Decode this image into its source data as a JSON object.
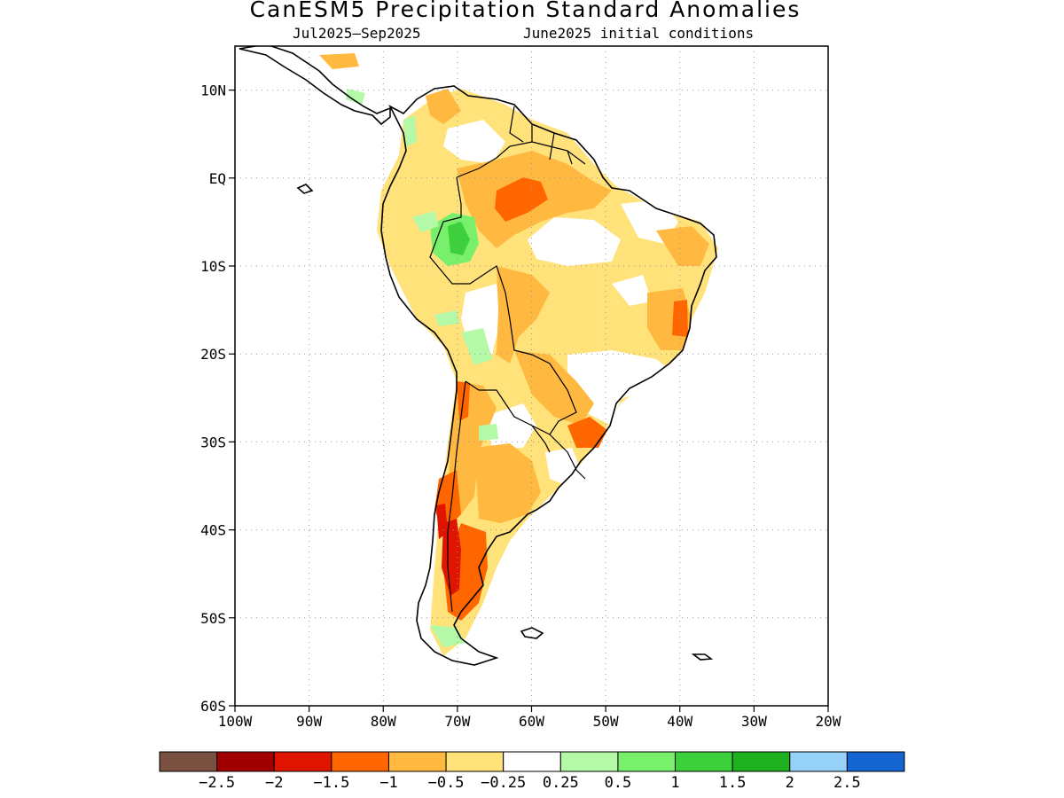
{
  "title": "CanESM5 Precipitation Standard Anomalies",
  "subtitle_left": "Jul2025–Sep2025",
  "subtitle_right": "June2025 initial conditions",
  "map": {
    "lon_range": [
      -100,
      -20
    ],
    "lat_range": [
      -60,
      15
    ],
    "lat_ticks": [
      {
        "value": 10,
        "label": "10N"
      },
      {
        "value": 0,
        "label": "EQ"
      },
      {
        "value": -10,
        "label": "10S"
      },
      {
        "value": -20,
        "label": "20S"
      },
      {
        "value": -30,
        "label": "30S"
      },
      {
        "value": -40,
        "label": "40S"
      },
      {
        "value": -50,
        "label": "50S"
      },
      {
        "value": -60,
        "label": "60S"
      }
    ],
    "lon_ticks": [
      {
        "value": -100,
        "label": "100W"
      },
      {
        "value": -90,
        "label": "90W"
      },
      {
        "value": -80,
        "label": "80W"
      },
      {
        "value": -70,
        "label": "70W"
      },
      {
        "value": -60,
        "label": "60W"
      },
      {
        "value": -50,
        "label": "50W"
      },
      {
        "value": -40,
        "label": "40W"
      },
      {
        "value": -30,
        "label": "30W"
      },
      {
        "value": -20,
        "label": "20W"
      }
    ],
    "grid": "dotted"
  },
  "colorbar": {
    "colors": [
      "#7a5040",
      "#a00000",
      "#e01500",
      "#ff6600",
      "#ffb940",
      "#ffe27a",
      "#ffffff",
      "#b4f9a8",
      "#78f06c",
      "#3cd13c",
      "#1eb01e",
      "#96d2fa",
      "#1464d2"
    ],
    "labels": [
      "−2.5",
      "−2",
      "−1.5",
      "−1",
      "−0.5",
      "−0.25",
      "0.25",
      "0.5",
      "1",
      "1.5",
      "2",
      "2.5"
    ]
  },
  "anomaly_colors": {
    "lt_-1.5": "#e01500",
    "-1.5_-1": "#ff6600",
    "-1_-0.5": "#ffb940",
    "-0.5_-0.25": "#ffe27a",
    "0.25_0.5": "#b4f9a8",
    "0.5_1": "#78f06c",
    "1_1.5": "#3cd13c"
  }
}
